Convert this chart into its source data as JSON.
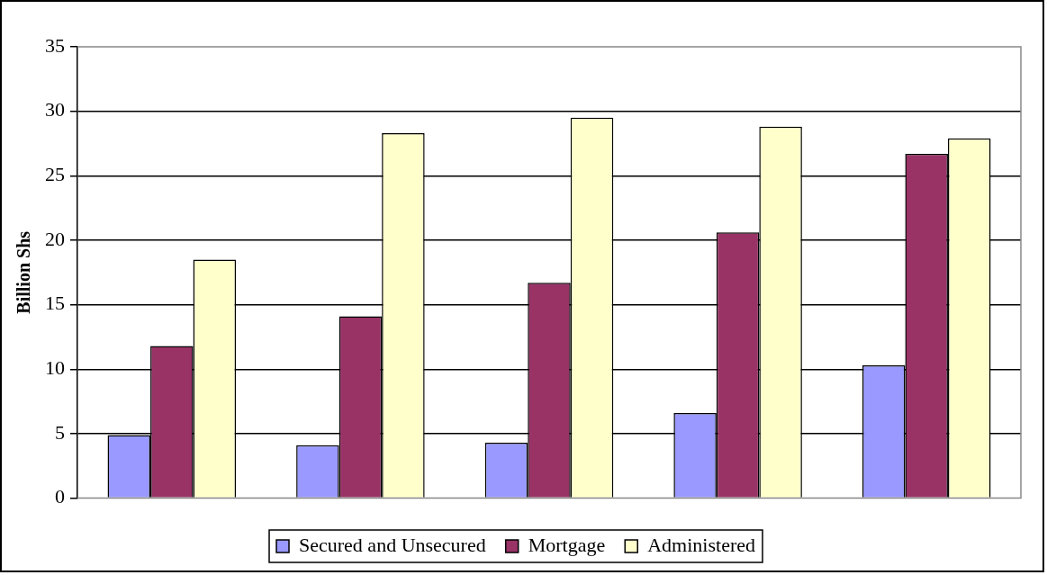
{
  "chart_data": {
    "type": "bar",
    "ylabel": "Billion Shs",
    "categories": [
      null,
      null,
      null,
      null,
      null
    ],
    "series": [
      {
        "name": "Secured and Unsecured",
        "color": "#9999ff",
        "values": [
          4.9,
          4.1,
          4.3,
          6.6,
          10.3
        ]
      },
      {
        "name": "Mortgage",
        "color": "#993366",
        "values": [
          11.8,
          14.1,
          16.7,
          20.6,
          26.7
        ]
      },
      {
        "name": "Administered",
        "color": "#ffffcc",
        "values": [
          18.5,
          28.3,
          29.5,
          28.8,
          27.9
        ]
      }
    ],
    "ylim": [
      0,
      35
    ],
    "yticks": [
      0,
      5,
      10,
      15,
      20,
      25,
      30,
      35
    ],
    "grid": "y",
    "legend": "bottom"
  }
}
